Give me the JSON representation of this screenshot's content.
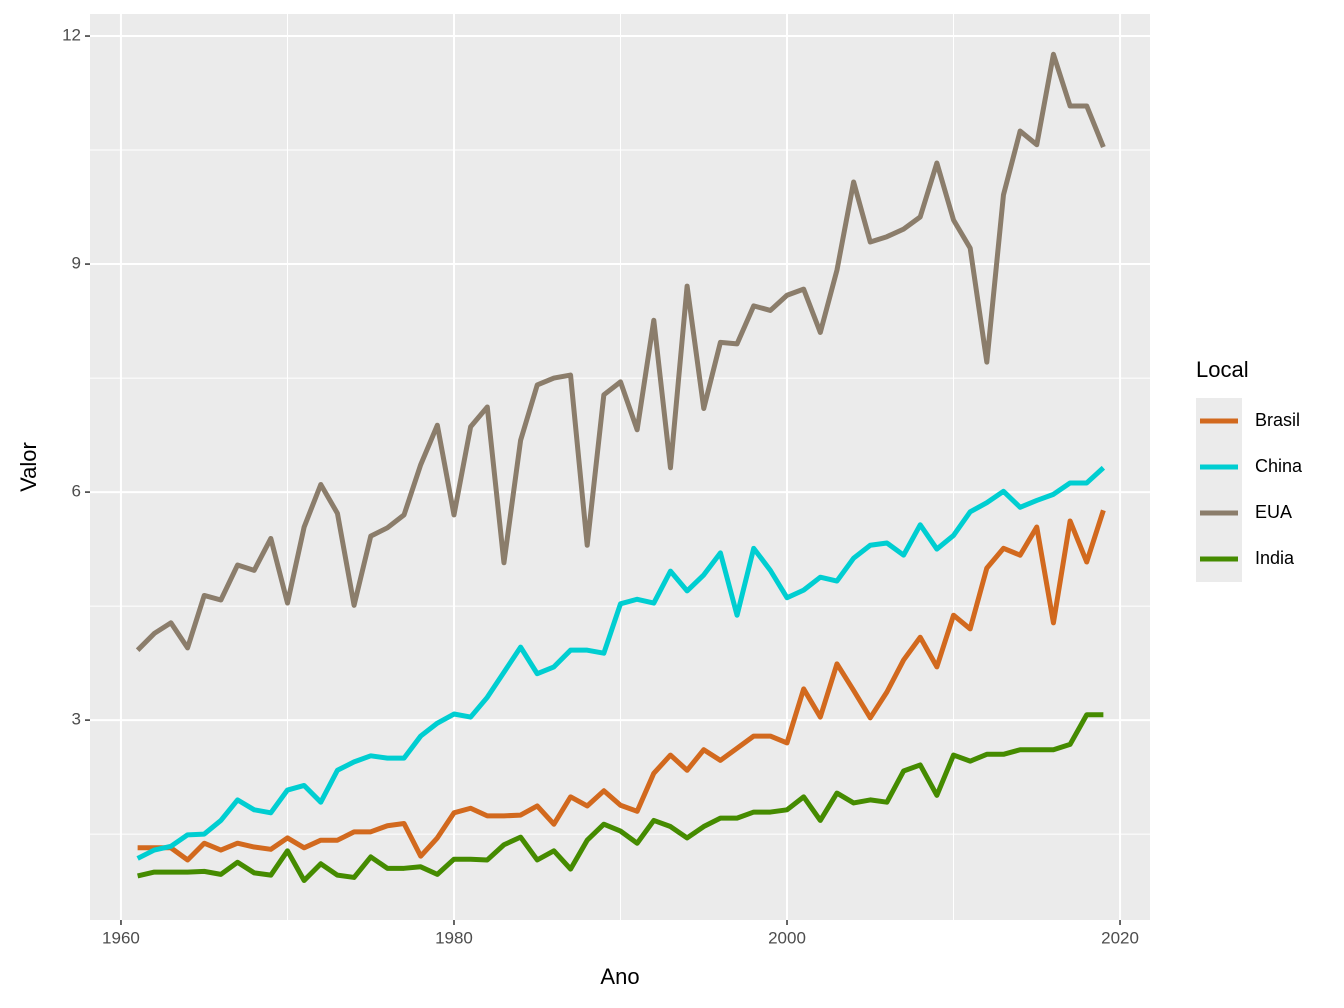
{
  "chart_data": {
    "type": "line",
    "x_label": "Ano",
    "y_label": "Valor",
    "legend_title": "Local",
    "x": [
      1961,
      1962,
      1963,
      1964,
      1965,
      1966,
      1967,
      1968,
      1969,
      1970,
      1971,
      1972,
      1973,
      1974,
      1975,
      1976,
      1977,
      1978,
      1979,
      1980,
      1981,
      1982,
      1983,
      1984,
      1985,
      1986,
      1987,
      1988,
      1989,
      1990,
      1991,
      1992,
      1993,
      1994,
      1995,
      1996,
      1997,
      1998,
      1999,
      2000,
      2001,
      2002,
      2003,
      2004,
      2005,
      2006,
      2007,
      2008,
      2009,
      2010,
      2011,
      2012,
      2013,
      2014,
      2015,
      2016,
      2017,
      2018,
      2019
    ],
    "series": [
      {
        "name": "Brasil",
        "color": "#d2691e",
        "values": [
          1.32,
          1.32,
          1.32,
          1.16,
          1.38,
          1.29,
          1.38,
          1.33,
          1.3,
          1.45,
          1.32,
          1.42,
          1.42,
          1.53,
          1.53,
          1.61,
          1.64,
          1.21,
          1.45,
          1.78,
          1.84,
          1.74,
          1.74,
          1.75,
          1.87,
          1.63,
          1.99,
          1.87,
          2.07,
          1.88,
          1.8,
          2.3,
          2.54,
          2.34,
          2.61,
          2.47,
          2.63,
          2.79,
          2.79,
          2.7,
          3.41,
          3.04,
          3.74,
          3.39,
          3.03,
          3.37,
          3.79,
          4.09,
          3.7,
          4.38,
          4.2,
          5.0,
          5.26,
          5.17,
          5.54,
          4.28,
          5.62,
          5.08,
          5.76
        ]
      },
      {
        "name": "China",
        "color": "#00ced1",
        "values": [
          1.18,
          1.29,
          1.34,
          1.49,
          1.5,
          1.68,
          1.95,
          1.82,
          1.78,
          2.08,
          2.14,
          1.92,
          2.34,
          2.45,
          2.53,
          2.5,
          2.5,
          2.79,
          2.96,
          3.08,
          3.04,
          3.3,
          3.63,
          3.96,
          3.61,
          3.7,
          3.92,
          3.92,
          3.88,
          4.53,
          4.59,
          4.54,
          4.96,
          4.7,
          4.91,
          5.2,
          4.38,
          5.26,
          4.97,
          4.61,
          4.71,
          4.88,
          4.83,
          5.13,
          5.3,
          5.33,
          5.17,
          5.57,
          5.25,
          5.43,
          5.74,
          5.86,
          6.01,
          5.8,
          5.89,
          5.97,
          6.12,
          6.12,
          6.32
        ]
      },
      {
        "name": "EUA",
        "color": "#8b7d6b",
        "values": [
          3.92,
          4.14,
          4.28,
          3.95,
          4.64,
          4.58,
          5.04,
          4.97,
          5.39,
          4.54,
          5.54,
          6.1,
          5.72,
          4.51,
          5.42,
          5.53,
          5.7,
          6.36,
          6.88,
          5.7,
          6.86,
          7.12,
          5.07,
          6.68,
          7.41,
          7.5,
          7.54,
          5.3,
          7.28,
          7.45,
          6.82,
          8.26,
          6.32,
          8.71,
          7.1,
          7.97,
          7.95,
          8.45,
          8.39,
          8.59,
          8.67,
          8.1,
          8.92,
          10.08,
          9.29,
          9.36,
          9.46,
          9.62,
          10.33,
          9.58,
          9.21,
          7.71,
          9.91,
          10.75,
          10.57,
          11.76,
          11.08,
          11.08,
          10.54
        ]
      },
      {
        "name": "India",
        "color": "#458b00",
        "values": [
          0.95,
          1.0,
          1.0,
          1.0,
          1.01,
          0.97,
          1.13,
          0.99,
          0.96,
          1.28,
          0.89,
          1.11,
          0.96,
          0.93,
          1.2,
          1.05,
          1.05,
          1.07,
          0.97,
          1.17,
          1.17,
          1.16,
          1.36,
          1.46,
          1.16,
          1.28,
          1.04,
          1.42,
          1.63,
          1.54,
          1.38,
          1.68,
          1.6,
          1.45,
          1.6,
          1.71,
          1.71,
          1.79,
          1.79,
          1.82,
          1.99,
          1.68,
          2.04,
          1.91,
          1.95,
          1.92,
          2.33,
          2.41,
          2.01,
          2.54,
          2.46,
          2.55,
          2.55,
          2.61,
          2.61,
          2.61,
          2.68,
          3.07,
          3.07
        ]
      }
    ],
    "xlim": [
      1958.14,
      2021.8
    ],
    "xticks": [
      1960,
      1980,
      2000,
      2020
    ],
    "xminor": [
      1970,
      1990,
      2010
    ],
    "ylim": [
      0.37,
      12.29
    ],
    "yticks": [
      3,
      6,
      9,
      12
    ],
    "yminor": [
      1.5,
      4.5,
      7.5,
      10.5
    ],
    "grid": true
  }
}
